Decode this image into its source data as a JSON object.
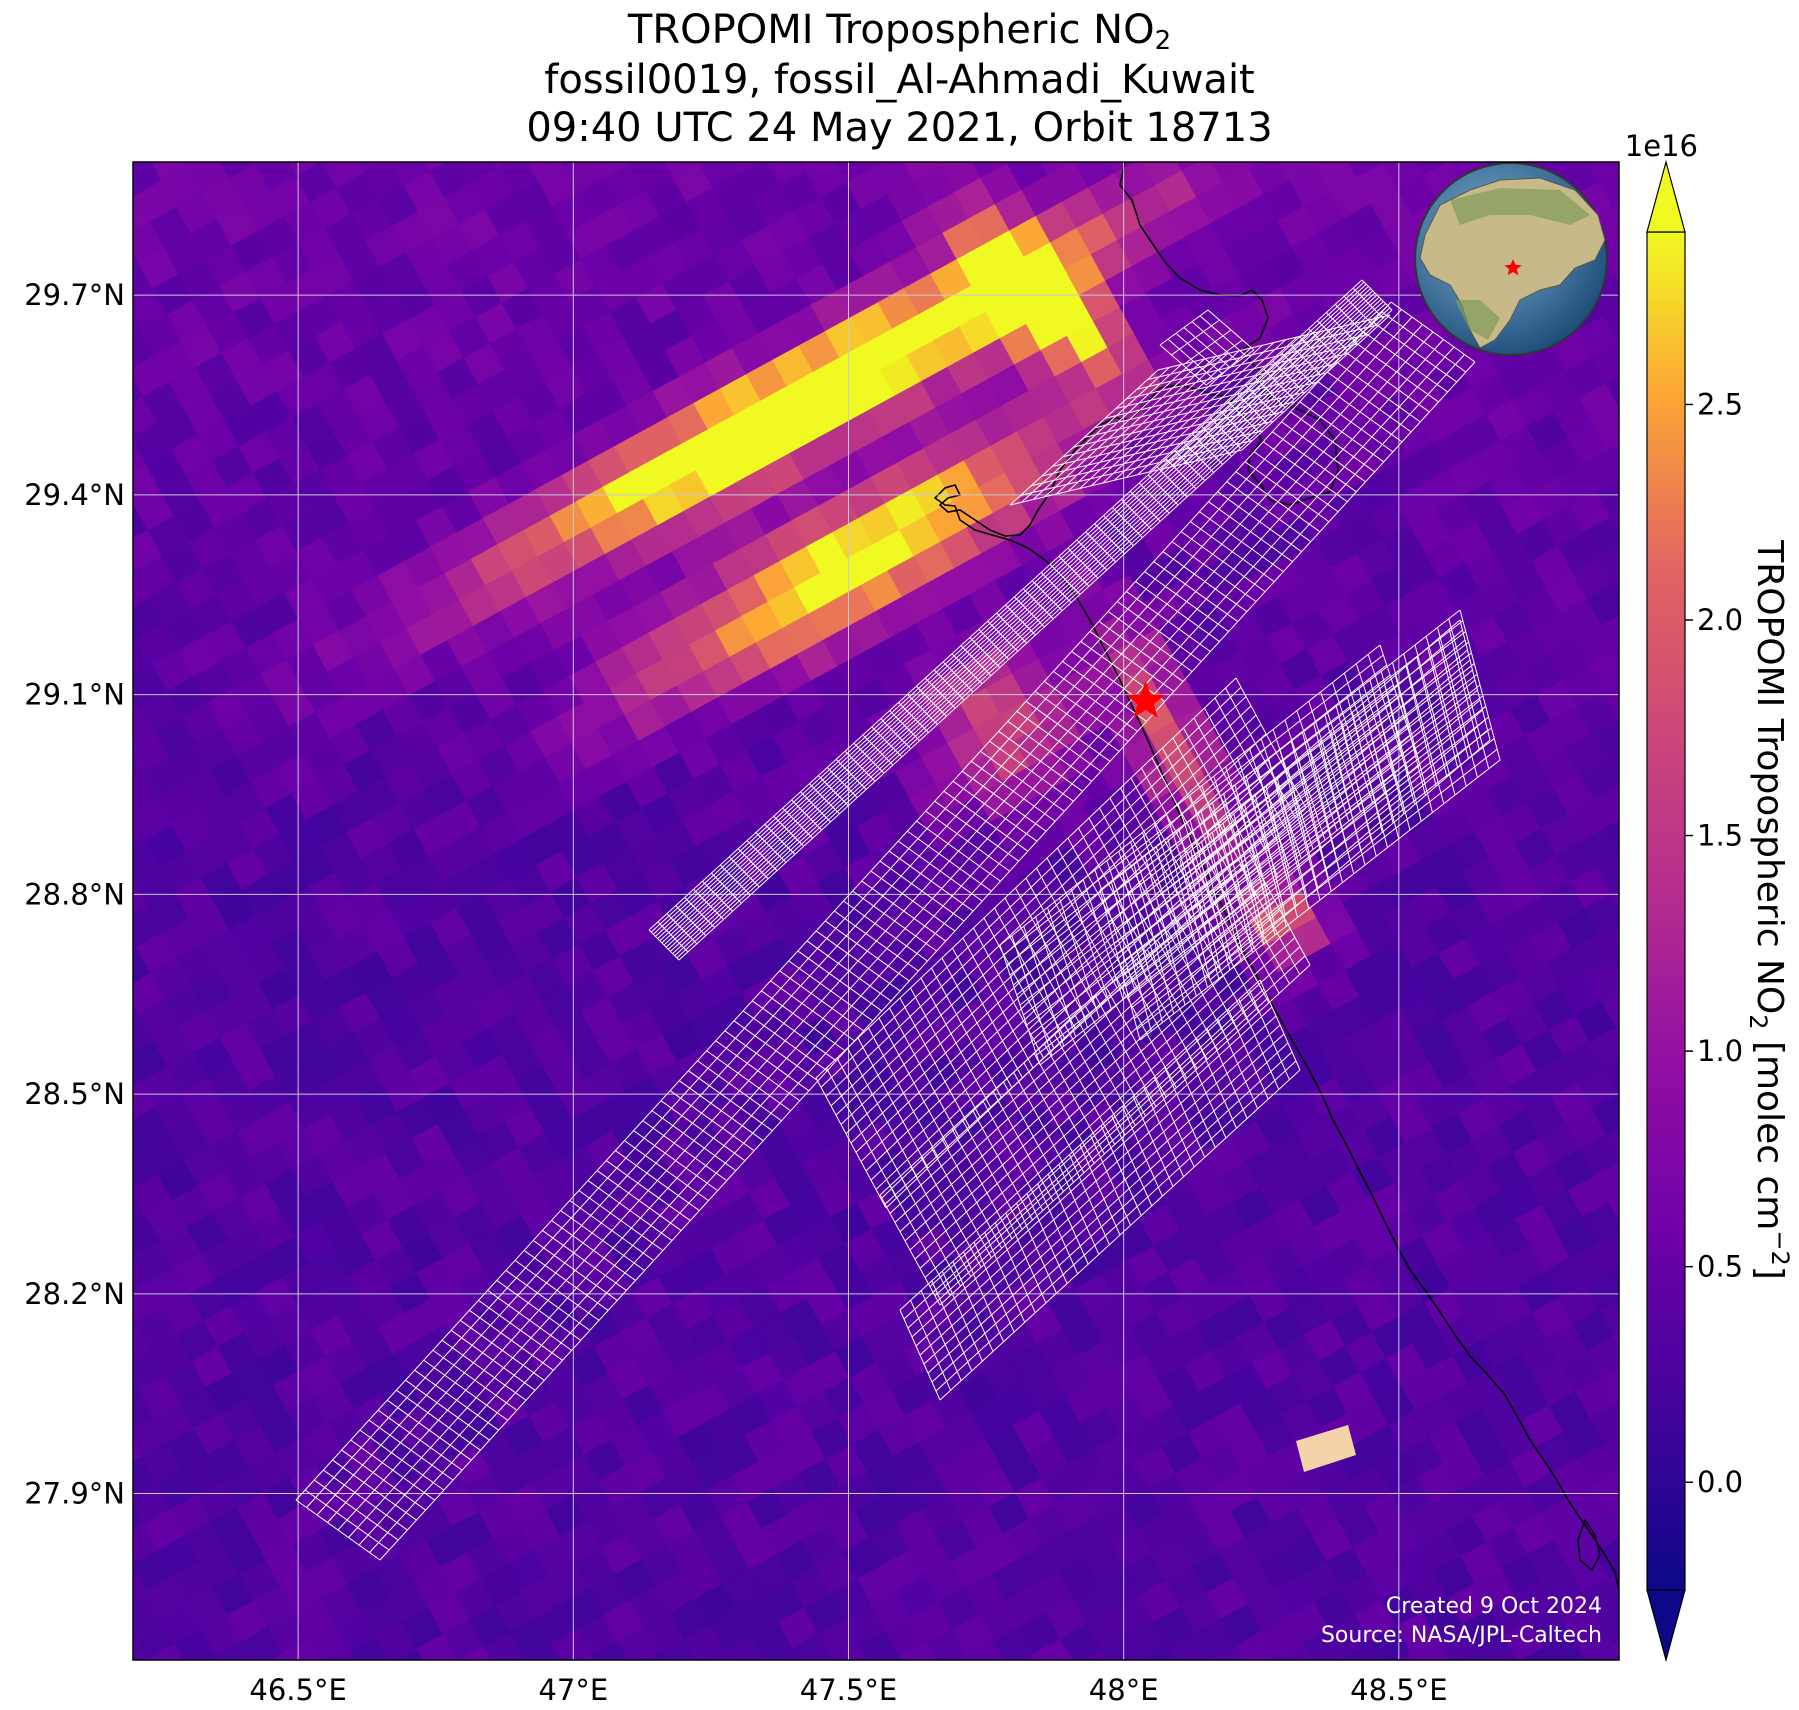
{
  "title": {
    "line1_main": "TROPOMI Tropospheric NO",
    "line1_sub": "2",
    "line2": "fossil0019, fossil_Al-Ahmadi_Kuwait",
    "line3": "09:40 UTC 24 May 2021, Orbit 18713"
  },
  "map": {
    "lon_range": [
      46.2,
      48.9
    ],
    "lat_range": [
      27.65,
      29.9
    ],
    "lon_ticks": [
      46.5,
      47.0,
      47.5,
      48.0,
      48.5
    ],
    "lon_tick_labels": [
      "46.5°E",
      "47°E",
      "47.5°E",
      "48°E",
      "48.5°E"
    ],
    "lat_ticks": [
      29.7,
      29.4,
      29.1,
      28.8,
      28.5,
      28.2,
      27.9
    ],
    "lat_tick_labels": [
      "29.7°N",
      "29.4°N",
      "29.1°N",
      "28.8°N",
      "28.5°N",
      "28.2°N",
      "27.9°N"
    ],
    "site_marker": {
      "lon": 48.04,
      "lat": 29.09,
      "symbol": "red-star"
    },
    "credit_line1": "Created 9 Oct 2024",
    "credit_line2": "Source: NASA/JPL-Caltech"
  },
  "colorbar": {
    "label_main": "TROPOMI Tropospheric NO",
    "label_sub": "2",
    "label_units_a": " [molec cm",
    "label_units_sup": "−2",
    "label_units_b": "]",
    "exponent": "1e16",
    "range": [
      -0.25,
      2.9
    ],
    "ticks": [
      0.0,
      0.5,
      1.0,
      1.5,
      2.0,
      2.5
    ],
    "tick_labels": [
      "0.0",
      "0.5",
      "1.0",
      "1.5",
      "2.0",
      "2.5"
    ],
    "colormap": "plasma",
    "extend": "both"
  },
  "colors": {
    "plasma_low": "#0d0887",
    "plasma_mid": "#cc4778",
    "plasma_high": "#f0f921",
    "coastline": "#000000",
    "grid": "#d0d0d8",
    "footprint_outline": "#ffffff",
    "marker": "#ff0000"
  }
}
